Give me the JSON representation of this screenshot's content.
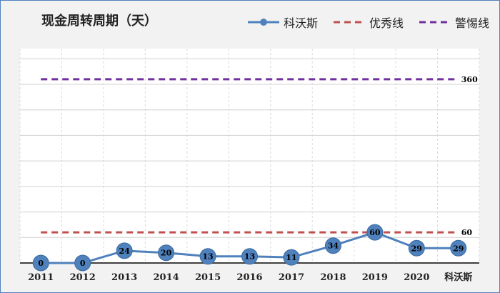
{
  "chart_data": {
    "type": "line",
    "title": "现金周转周期（天）",
    "categories": [
      "2011",
      "2012",
      "2013",
      "2014",
      "2015",
      "2016",
      "2017",
      "2018",
      "2019",
      "2020",
      "科沃斯"
    ],
    "series": [
      {
        "name": "科沃斯",
        "values": [
          0,
          0,
          24,
          20,
          13,
          13,
          11,
          34,
          60,
          29,
          29
        ],
        "color": "#4f81bd",
        "style": "solid-markers"
      },
      {
        "name": "优秀线",
        "values": [
          60,
          60,
          60,
          60,
          60,
          60,
          60,
          60,
          60,
          60,
          60
        ],
        "color": "#c0504d",
        "style": "dashed",
        "end_label": "60"
      },
      {
        "name": "警惕线",
        "values": [
          360,
          360,
          360,
          360,
          360,
          360,
          360,
          360,
          360,
          360,
          360
        ],
        "color": "#7030a0",
        "style": "dashed",
        "end_label": "360"
      }
    ],
    "ylim": [
      0,
      420
    ],
    "grid": true,
    "legend": "top-right"
  }
}
